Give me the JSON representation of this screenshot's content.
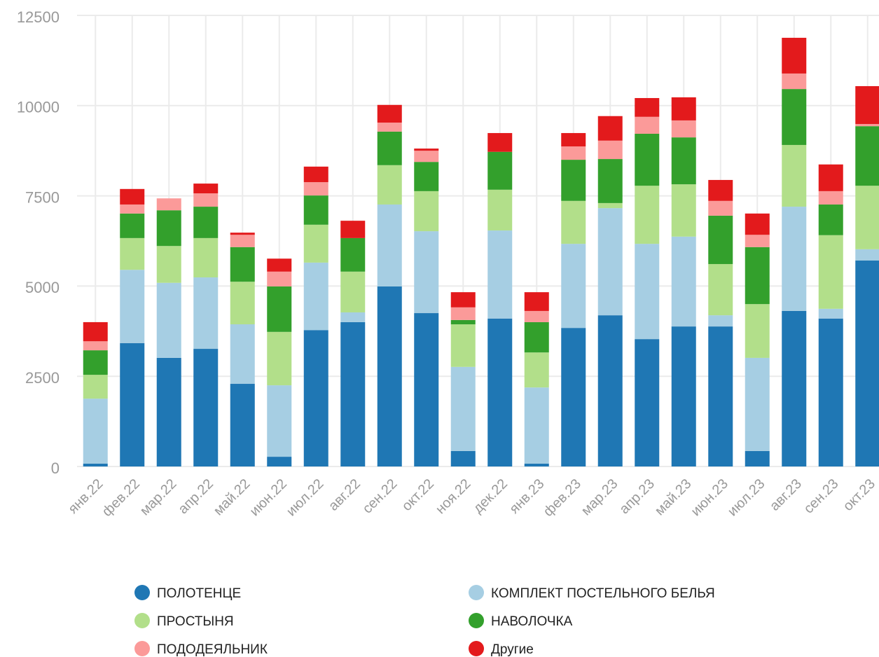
{
  "chart_data": {
    "type": "stacked_bar",
    "categories": [
      "янв.22",
      "фев.22",
      "мар.22",
      "апр.22",
      "май.22",
      "июн.22",
      "июл.22",
      "авг.22",
      "сен.22",
      "окт.22",
      "ноя.22",
      "дек.22",
      "янв.23",
      "фев.23",
      "мар.23",
      "апр.23",
      "май.23",
      "июн.23",
      "июл.23",
      "авг.23",
      "сен.23",
      "окт.23"
    ],
    "series": [
      {
        "name": "ПОЛОТЕНЦЕ",
        "color": "#1f77b4",
        "values": [
          80,
          3420,
          3010,
          3260,
          2290,
          270,
          3780,
          4000,
          4990,
          4250,
          430,
          4100,
          80,
          3840,
          4190,
          3530,
          3880,
          3880,
          430,
          4310,
          4100,
          5710
        ]
      },
      {
        "name": "КОМПЛЕКТ ПОСТЕЛЬНОГО БЕЛЬЯ",
        "color": "#a6cee3",
        "values": [
          1800,
          2030,
          2080,
          1980,
          1650,
          1980,
          1870,
          270,
          2270,
          2270,
          2330,
          2440,
          2110,
          2330,
          2970,
          2640,
          2490,
          310,
          2580,
          2890,
          270,
          310
        ]
      },
      {
        "name": "ПРОСТЫНЯ",
        "color": "#b2df8a",
        "values": [
          660,
          880,
          1020,
          1090,
          1180,
          1480,
          1050,
          1130,
          1090,
          1110,
          1180,
          1130,
          970,
          1190,
          140,
          1610,
          1450,
          1420,
          1490,
          1710,
          2040,
          1760
        ]
      },
      {
        "name": "НАВОЛОЧКА",
        "color": "#33a02c",
        "values": [
          680,
          680,
          990,
          870,
          960,
          1260,
          810,
          930,
          930,
          810,
          120,
          1050,
          840,
          1140,
          1220,
          1440,
          1300,
          1340,
          1580,
          1550,
          850,
          1650
        ]
      },
      {
        "name": "ПОДОДЕЯЛЬНИК",
        "color": "#fb9a99",
        "values": [
          250,
          250,
          330,
          370,
          340,
          410,
          370,
          0,
          250,
          310,
          350,
          0,
          310,
          370,
          510,
          470,
          470,
          410,
          340,
          430,
          370,
          60
        ]
      },
      {
        "name": "Другие",
        "color": "#e31a1c",
        "values": [
          530,
          430,
          0,
          270,
          60,
          360,
          430,
          480,
          490,
          60,
          420,
          520,
          520,
          370,
          680,
          520,
          640,
          580,
          590,
          990,
          740,
          1050
        ]
      }
    ],
    "ylim": [
      0,
      12500
    ],
    "yticks": [
      0,
      2500,
      5000,
      7500,
      10000,
      12500
    ],
    "grid": true
  }
}
